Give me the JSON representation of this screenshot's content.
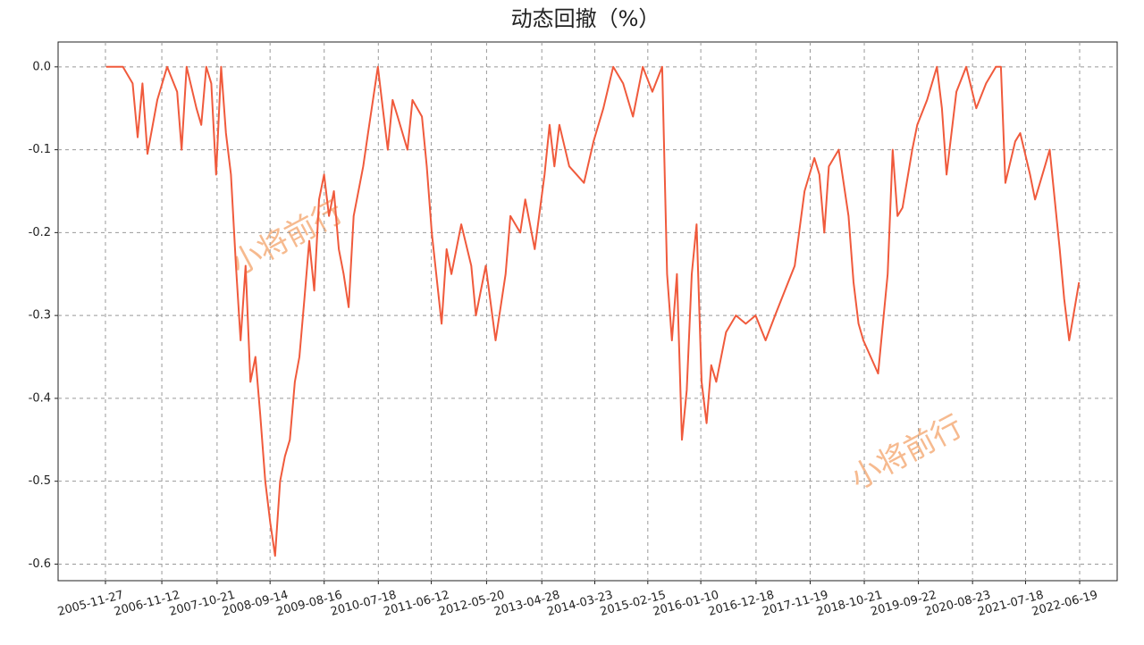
{
  "chart_data": {
    "type": "line",
    "title": "动态回撤（%）",
    "color": "#f05a3c",
    "grid": true,
    "annotations": [
      "小将前行",
      "小将前行"
    ],
    "ylim": [
      -0.62,
      0.03
    ],
    "yticks": [
      {
        "value": 0,
        "label": "0.0"
      },
      -0.1,
      -0.2,
      -0.3,
      -0.4,
      -0.5,
      -0.6
    ],
    "xlim": [
      "2005-02-06",
      "2023-02-07"
    ],
    "xticks": [
      "2005-11-27",
      "2006-11-12",
      "2007-10-21",
      "2008-09-14",
      "2009-08-16",
      "2010-07-18",
      "2011-06-12",
      "2012-05-20",
      "2013-04-28",
      "2014-03-23",
      "2015-02-15",
      "2016-01-10",
      "2016-12-18",
      "2017-11-19",
      "2018-10-21",
      "2019-09-22",
      "2020-08-23",
      "2021-07-18",
      "2022-06-19"
    ],
    "x": [
      "2005-12-01",
      "2006-03-15",
      "2006-05-15",
      "2006-06-15",
      "2006-07-15",
      "2006-08-15",
      "2006-10-15",
      "2006-12-15",
      "2007-02-15",
      "2007-03-15",
      "2007-04-15",
      "2007-06-15",
      "2007-07-15",
      "2007-08-15",
      "2007-09-15",
      "2007-10-15",
      "2007-11-15",
      "2007-12-15",
      "2008-01-15",
      "2008-02-15",
      "2008-03-15",
      "2008-04-15",
      "2008-05-15",
      "2008-06-15",
      "2008-07-15",
      "2008-08-15",
      "2008-09-15",
      "2008-10-15",
      "2008-11-15",
      "2008-12-15",
      "2009-01-15",
      "2009-02-15",
      "2009-03-15",
      "2009-04-15",
      "2009-05-15",
      "2009-06-15",
      "2009-07-15",
      "2009-08-15",
      "2009-09-15",
      "2009-10-15",
      "2009-11-15",
      "2009-12-15",
      "2010-01-15",
      "2010-02-15",
      "2010-04-15",
      "2010-05-15",
      "2010-07-15",
      "2010-08-15",
      "2010-09-15",
      "2010-10-15",
      "2010-11-15",
      "2011-01-15",
      "2011-02-15",
      "2011-04-15",
      "2011-05-15",
      "2011-06-15",
      "2011-08-15",
      "2011-09-15",
      "2011-10-15",
      "2011-12-15",
      "2012-02-15",
      "2012-03-15",
      "2012-05-15",
      "2012-07-15",
      "2012-09-15",
      "2012-10-15",
      "2012-12-15",
      "2013-01-15",
      "2013-03-15",
      "2013-05-15",
      "2013-06-15",
      "2013-07-15",
      "2013-08-15",
      "2013-10-15",
      "2014-01-15",
      "2014-03-15",
      "2014-05-15",
      "2014-07-15",
      "2014-09-15",
      "2014-11-15",
      "2015-01-15",
      "2015-03-15",
      "2015-05-15",
      "2015-06-15",
      "2015-07-15",
      "2015-08-15",
      "2015-09-15",
      "2015-10-15",
      "2015-11-15",
      "2015-12-15",
      "2016-01-15",
      "2016-02-15",
      "2016-03-15",
      "2016-04-15",
      "2016-06-15",
      "2016-08-15",
      "2016-10-15",
      "2016-12-15",
      "2017-02-15",
      "2017-04-15",
      "2017-06-15",
      "2017-08-15",
      "2017-10-15",
      "2017-12-15",
      "2018-01-15",
      "2018-02-15",
      "2018-03-15",
      "2018-05-15",
      "2018-07-15",
      "2018-08-15",
      "2018-09-15",
      "2018-10-15",
      "2019-01-15",
      "2019-03-15",
      "2019-04-15",
      "2019-05-15",
      "2019-06-15",
      "2019-08-15",
      "2019-09-15",
      "2019-11-15",
      "2020-01-15",
      "2020-02-15",
      "2020-03-15",
      "2020-05-15",
      "2020-07-15",
      "2020-09-15",
      "2020-11-15",
      "2021-01-15",
      "2021-02-15",
      "2021-03-15",
      "2021-05-15",
      "2021-06-15",
      "2021-08-15",
      "2021-09-15",
      "2021-11-15",
      "2021-12-15",
      "2022-02-15",
      "2022-03-15",
      "2022-04-15",
      "2022-06-15"
    ],
    "values": [
      0,
      0,
      -0.02,
      -0.085,
      -0.02,
      -0.105,
      -0.04,
      0,
      -0.03,
      -0.1,
      0,
      -0.05,
      -0.07,
      0,
      -0.02,
      -0.13,
      0,
      -0.08,
      -0.13,
      -0.24,
      -0.33,
      -0.24,
      -0.38,
      -0.35,
      -0.42,
      -0.5,
      -0.55,
      -0.59,
      -0.5,
      -0.47,
      -0.45,
      -0.38,
      -0.35,
      -0.28,
      -0.21,
      -0.27,
      -0.16,
      -0.13,
      -0.18,
      -0.15,
      -0.22,
      -0.25,
      -0.29,
      -0.18,
      -0.12,
      -0.08,
      0,
      -0.05,
      -0.1,
      -0.04,
      -0.06,
      -0.1,
      -0.04,
      -0.06,
      -0.12,
      -0.2,
      -0.31,
      -0.22,
      -0.25,
      -0.19,
      -0.24,
      -0.3,
      -0.24,
      -0.33,
      -0.25,
      -0.18,
      -0.2,
      -0.16,
      -0.22,
      -0.13,
      -0.07,
      -0.12,
      -0.07,
      -0.12,
      -0.14,
      -0.09,
      -0.05,
      0,
      -0.02,
      -0.06,
      0,
      -0.03,
      0,
      -0.25,
      -0.33,
      -0.25,
      -0.45,
      -0.39,
      -0.25,
      -0.19,
      -0.38,
      -0.43,
      -0.36,
      -0.38,
      -0.32,
      -0.3,
      -0.31,
      -0.3,
      -0.33,
      -0.3,
      -0.27,
      -0.24,
      -0.15,
      -0.11,
      -0.13,
      -0.2,
      -0.12,
      -0.1,
      -0.18,
      -0.26,
      -0.31,
      -0.33,
      -0.37,
      -0.25,
      -0.1,
      -0.18,
      -0.17,
      -0.1,
      -0.07,
      -0.04,
      0,
      -0.05,
      -0.13,
      -0.03,
      0,
      -0.05,
      -0.02,
      0,
      0,
      -0.14,
      -0.09,
      -0.08,
      -0.13,
      -0.16,
      -0.12,
      -0.1,
      -0.22,
      -0.28,
      -0.33,
      -0.26
    ]
  }
}
